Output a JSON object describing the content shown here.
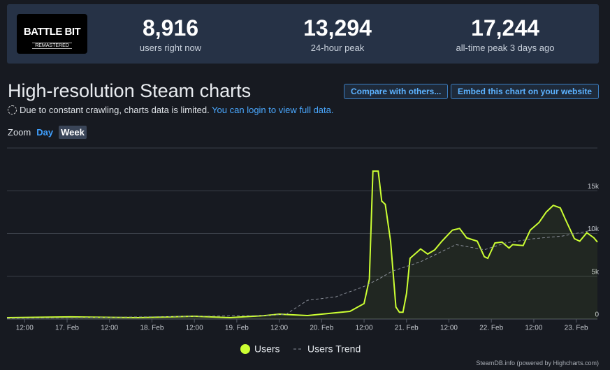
{
  "header": {
    "logo": {
      "line1": "BATTLE BIT",
      "line2": "REMASTERED"
    },
    "stats": [
      {
        "value": "8,916",
        "label": "users right now"
      },
      {
        "value": "13,294",
        "label": "24-hour peak"
      },
      {
        "value": "17,244",
        "label": "all-time peak 3 days ago"
      }
    ]
  },
  "title": "High-resolution Steam charts",
  "buttons": [
    "Compare with others...",
    "Embed this chart on your website"
  ],
  "notice": {
    "text": "Due to constant crawling, charts data is limited.",
    "link": "You can login to view full data."
  },
  "zoom": {
    "label": "Zoom",
    "options": [
      "Day",
      "Week"
    ]
  },
  "chart": {
    "type": "line",
    "xlim": [
      -17,
      150
    ],
    "ylim": [
      0,
      20000
    ],
    "xticks": [
      {
        "value": -12,
        "label": "12:00"
      },
      {
        "value": 0,
        "label": "17. Feb"
      },
      {
        "value": 12,
        "label": "12:00"
      },
      {
        "value": 24,
        "label": "18. Feb"
      },
      {
        "value": 36,
        "label": "12:00"
      },
      {
        "value": 48,
        "label": "19. Feb"
      },
      {
        "value": 60,
        "label": "12:00"
      },
      {
        "value": 72,
        "label": "20. Feb"
      },
      {
        "value": 84,
        "label": "12:00"
      },
      {
        "value": 96,
        "label": "21. Feb"
      },
      {
        "value": 108,
        "label": "12:00"
      },
      {
        "value": 120,
        "label": "22. Feb"
      },
      {
        "value": 132,
        "label": "12:00"
      },
      {
        "value": 144,
        "label": "23. Feb"
      }
    ],
    "yticks": [
      0,
      {
        "value": 5000,
        "label": "5k"
      },
      {
        "value": 10000,
        "label": "10k"
      },
      {
        "value": 15000,
        "label": "15k"
      }
    ],
    "grid": true,
    "series": [
      {
        "name": "Users",
        "color": "#ccff33",
        "dashed": false,
        "x": [
          -17,
          1,
          20,
          36,
          46,
          56,
          60,
          68,
          74,
          80,
          84,
          85.5,
          86.5,
          88,
          89,
          90,
          91.5,
          93,
          94,
          95,
          96,
          97,
          100,
          102,
          104,
          106,
          109,
          111,
          113,
          116,
          118,
          119,
          121,
          123,
          125,
          126,
          129,
          131,
          133.5,
          135.5,
          137.5,
          139.5,
          141,
          143.5,
          145,
          147,
          149,
          150
        ],
        "values": [
          160,
          250,
          160,
          330,
          160,
          410,
          570,
          410,
          650,
          900,
          1800,
          4650,
          17300,
          17300,
          13800,
          13400,
          9100,
          1400,
          800,
          800,
          3000,
          7100,
          8200,
          7600,
          8100,
          9100,
          10400,
          10600,
          9500,
          9100,
          7300,
          7100,
          8900,
          9000,
          8300,
          8700,
          8600,
          10400,
          11300,
          12500,
          13300,
          13000,
          11600,
          9400,
          9100,
          10100,
          9500,
          9000
        ]
      },
      {
        "name": "Users Trend",
        "color": "#8a8f99",
        "dashed": true,
        "x": [
          -17,
          56,
          62,
          68,
          76,
          84,
          88,
          92,
          100,
          110,
          118,
          124,
          132,
          140,
          150
        ],
        "values": [
          80,
          410,
          570,
          2200,
          2600,
          3800,
          4650,
          5600,
          6700,
          8700,
          8100,
          8900,
          9400,
          9700,
          10500
        ]
      }
    ]
  },
  "footer": "SteamDB.info (powered by Highcharts.com)"
}
